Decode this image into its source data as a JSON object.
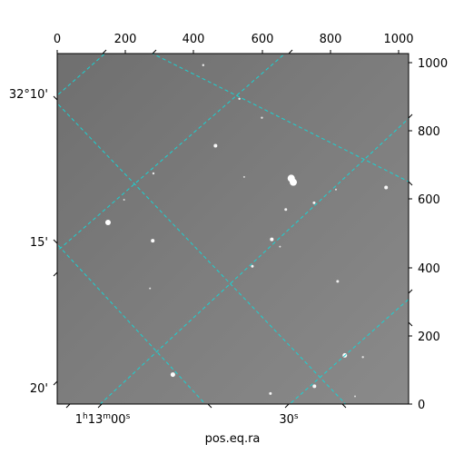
{
  "chart_data": {
    "type": "scatter",
    "title": "",
    "xlabel": "pos.eq.ra",
    "ylabel": "",
    "pixel_axis_x": {
      "range": [
        0,
        1030
      ],
      "ticks": [
        0,
        200,
        400,
        600,
        800,
        1000
      ]
    },
    "pixel_axis_y": {
      "range": [
        0,
        1000
      ],
      "ticks": [
        0,
        200,
        400,
        600,
        800,
        1000
      ]
    },
    "world_axis_ra": {
      "labels": [
        {
          "text_main": "1",
          "sup1": "h",
          "text_mid": "13",
          "sup2": "m",
          "text_end": "00",
          "sup3": "s",
          "value": "1h13m00s"
        },
        {
          "text_main": "30",
          "sup1": "s",
          "text_mid": "",
          "sup2": "",
          "text_end": "",
          "sup3": "",
          "value": "1h12m30s"
        }
      ]
    },
    "world_axis_dec": {
      "labels": [
        "32°10'",
        "15'",
        "20'"
      ]
    },
    "image_background": "#7d7d7d",
    "grid_color": "#19d3d3",
    "grid": true,
    "stars": [
      {
        "x": 686,
        "y": 644,
        "r": 4,
        "brightness": 1.0
      },
      {
        "x": 692,
        "y": 633,
        "r": 4,
        "brightness": 1.0
      },
      {
        "x": 149,
        "y": 518,
        "r": 3,
        "brightness": 1.0
      },
      {
        "x": 280,
        "y": 466,
        "r": 2,
        "brightness": 0.95
      },
      {
        "x": 629,
        "y": 470,
        "r": 2,
        "brightness": 0.95
      },
      {
        "x": 464,
        "y": 737,
        "r": 2,
        "brightness": 0.9
      },
      {
        "x": 670,
        "y": 555,
        "r": 1.5,
        "brightness": 0.85
      },
      {
        "x": 753,
        "y": 574,
        "r": 1.5,
        "brightness": 0.85
      },
      {
        "x": 964,
        "y": 618,
        "r": 2,
        "brightness": 0.9
      },
      {
        "x": 572,
        "y": 393,
        "r": 1.5,
        "brightness": 0.85
      },
      {
        "x": 822,
        "y": 350,
        "r": 1.5,
        "brightness": 0.8
      },
      {
        "x": 843,
        "y": 139,
        "r": 2.5,
        "brightness": 0.95
      },
      {
        "x": 339,
        "y": 84,
        "r": 2.5,
        "brightness": 0.95
      },
      {
        "x": 754,
        "y": 51,
        "r": 2,
        "brightness": 0.9
      },
      {
        "x": 625,
        "y": 30,
        "r": 1.5,
        "brightness": 0.85
      },
      {
        "x": 282,
        "y": 658,
        "r": 1.2,
        "brightness": 0.7
      },
      {
        "x": 534,
        "y": 871,
        "r": 1.2,
        "brightness": 0.7
      },
      {
        "x": 428,
        "y": 967,
        "r": 1.2,
        "brightness": 0.75
      },
      {
        "x": 600,
        "y": 817,
        "r": 1.2,
        "brightness": 0.6
      },
      {
        "x": 896,
        "y": 134,
        "r": 1.2,
        "brightness": 0.6
      },
      {
        "x": 653,
        "y": 449,
        "r": 1.0,
        "brightness": 0.6
      },
      {
        "x": 817,
        "y": 612,
        "r": 1.0,
        "brightness": 0.6
      },
      {
        "x": 272,
        "y": 330,
        "r": 1.0,
        "brightness": 0.55
      },
      {
        "x": 873,
        "y": 22,
        "r": 1.0,
        "brightness": 0.55
      },
      {
        "x": 548,
        "y": 648,
        "r": 1.0,
        "brightness": 0.5
      },
      {
        "x": 196,
        "y": 583,
        "r": 1.0,
        "brightness": 0.5
      }
    ]
  }
}
